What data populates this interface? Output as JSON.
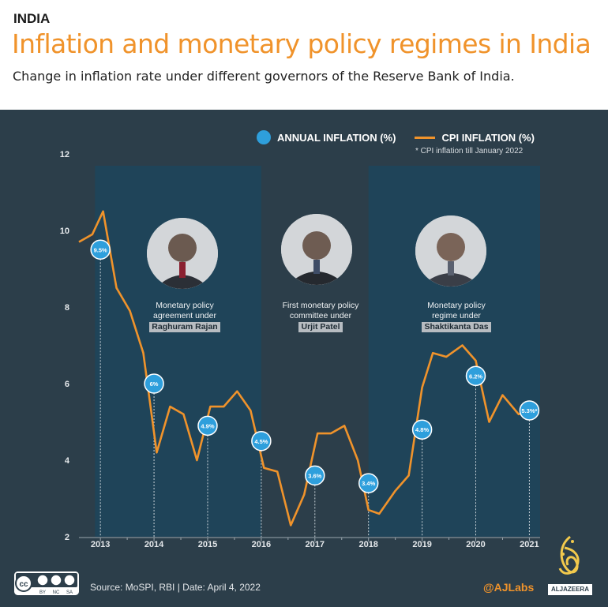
{
  "header": {
    "kicker": "INDIA",
    "title": "Inflation and monetary policy regimes in India",
    "subtitle": "Change in inflation rate under different governors of the Reserve Bank of India."
  },
  "legend": {
    "annual": "ANNUAL INFLATION (%)",
    "cpi": "CPI INFLATION (%)",
    "note": "* CPI inflation till January 2022"
  },
  "regimes": [
    {
      "line1": "Monetary policy",
      "line2": "agreement under",
      "name": "Raghuram Rajan"
    },
    {
      "line1": "First monetary policy",
      "line2": "committee under",
      "name": "Urjit Patel"
    },
    {
      "line1": "Monetary policy",
      "line2": "regime under",
      "name": "Shaktikanta Das"
    }
  ],
  "footer": {
    "source": "Source: MoSPI, RBI | Date: April 4, 2022",
    "handle": "@AJLabs",
    "brand": "ALJAZEERA",
    "license": "cc BY NC SA"
  },
  "colors": {
    "panel": "#2c3e4a",
    "band": "#1f4459",
    "cpi_line": "#f0932b",
    "annual_dot": "#2e9fdc",
    "title": "#f0932b"
  },
  "chart_data": {
    "type": "line",
    "ylim": [
      2,
      12
    ],
    "yticks": [
      2,
      4,
      6,
      8,
      10,
      12
    ],
    "xticks": [
      "2013",
      "2014",
      "2015",
      "2016",
      "2017",
      "2018",
      "2019",
      "2020",
      "2021"
    ],
    "xrange": [
      2012.6,
      2021.2
    ],
    "regime_bands": [
      {
        "start": 2012.9,
        "end": 2016.0,
        "governor": "Raghuram Rajan"
      },
      {
        "start": 2016.0,
        "end": 2018.0,
        "governor": "Urjit Patel"
      },
      {
        "start": 2018.0,
        "end": 2021.2,
        "governor": "Shaktikanta Das"
      }
    ],
    "series": [
      {
        "name": "CPI INFLATION (%)",
        "x": [
          2012.6,
          2012.85,
          2013.05,
          2013.3,
          2013.55,
          2013.8,
          2014.05,
          2014.3,
          2014.55,
          2014.8,
          2015.05,
          2015.3,
          2015.55,
          2015.8,
          2016.05,
          2016.3,
          2016.55,
          2016.8,
          2017.05,
          2017.3,
          2017.55,
          2017.8,
          2018.0,
          2018.2,
          2018.5,
          2018.75,
          2019.0,
          2019.2,
          2019.45,
          2019.75,
          2020.0,
          2020.25,
          2020.5,
          2020.8,
          2021.05
        ],
        "values": [
          9.7,
          9.9,
          10.5,
          8.5,
          7.9,
          6.8,
          4.2,
          5.4,
          5.2,
          4.0,
          5.4,
          5.4,
          5.8,
          5.3,
          3.8,
          3.7,
          2.3,
          3.1,
          4.7,
          4.7,
          4.9,
          4.0,
          2.7,
          2.6,
          3.2,
          3.6,
          5.9,
          6.8,
          6.7,
          7.0,
          6.6,
          5.0,
          5.7,
          5.2,
          5.3
        ]
      },
      {
        "name": "ANNUAL INFLATION (%)",
        "x": [
          2013,
          2014,
          2015,
          2016,
          2017,
          2018,
          2019,
          2020,
          2021
        ],
        "values": [
          9.5,
          6,
          4.9,
          4.5,
          3.6,
          3.4,
          4.8,
          6.2,
          5.3
        ],
        "labels": [
          "9.5%",
          "6%",
          "4.9%",
          "4.5%",
          "3.6%",
          "3.4%",
          "4.8%",
          "6.2%",
          "5.3%*"
        ]
      }
    ]
  }
}
